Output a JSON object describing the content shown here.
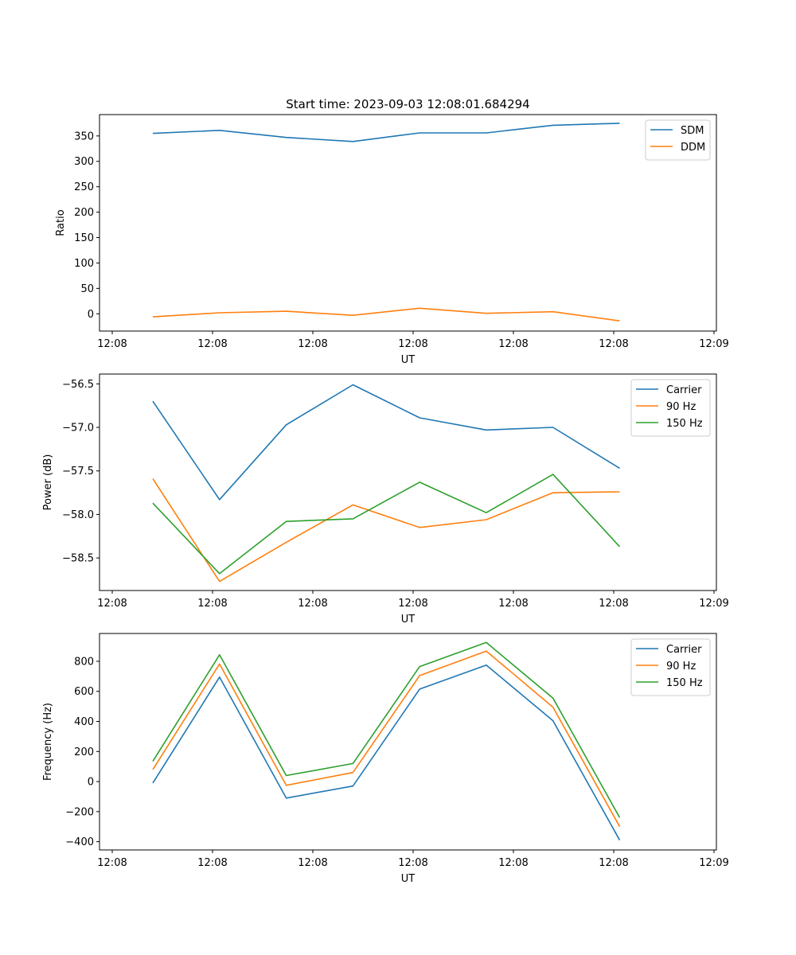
{
  "figure_title": "Start time: 2023-09-03 12:08:01.684294",
  "colors": {
    "blue": "#1f77b4",
    "orange": "#ff7f0e",
    "green": "#2ca02c"
  },
  "chart_data": [
    {
      "type": "line",
      "title": "Start time: 2023-09-03 12:08:01.684294",
      "xlabel": "UT",
      "ylabel": "Ratio",
      "x_ticks": [
        "12:08",
        "12:08",
        "12:08",
        "12:08",
        "12:08",
        "12:08",
        "12:09"
      ],
      "x": [
        1,
        2,
        3,
        4,
        5,
        6,
        7,
        8
      ],
      "xlim": [
        0.2,
        9.45
      ],
      "ylim": [
        -34,
        392
      ],
      "y_ticks": [
        0,
        50,
        100,
        150,
        200,
        250,
        300,
        350
      ],
      "y_tick_labels": [
        "0",
        "50",
        "100",
        "150",
        "200",
        "250",
        "300",
        "350"
      ],
      "legend": "top-right",
      "series": [
        {
          "name": "SDM",
          "color": "#1f77b4",
          "values": [
            355,
            361,
            347,
            339,
            356,
            356,
            371,
            375
          ]
        },
        {
          "name": "DDM",
          "color": "#ff7f0e",
          "values": [
            -6,
            2,
            5,
            -3,
            11,
            1,
            4,
            -14
          ]
        }
      ]
    },
    {
      "type": "line",
      "title": "",
      "xlabel": "UT",
      "ylabel": "Power (dB)",
      "x_ticks": [
        "12:08",
        "12:08",
        "12:08",
        "12:08",
        "12:08",
        "12:08",
        "12:09"
      ],
      "x": [
        1,
        2,
        3,
        4,
        5,
        6,
        7,
        8
      ],
      "xlim": [
        0.2,
        9.45
      ],
      "ylim": [
        -58.874,
        -56.387
      ],
      "y_ticks": [
        -58.5,
        -58.0,
        -57.5,
        -57.0,
        -56.5
      ],
      "y_tick_labels": [
        "−58.5",
        "−58.0",
        "−57.5",
        "−57.0",
        "−56.5"
      ],
      "legend": "top-right",
      "series": [
        {
          "name": "Carrier",
          "color": "#1f77b4",
          "values": [
            -56.7,
            -57.83,
            -56.97,
            -56.51,
            -56.89,
            -57.03,
            -57.0,
            -57.47
          ]
        },
        {
          "name": "90 Hz",
          "color": "#ff7f0e",
          "values": [
            -57.59,
            -58.77,
            -58.32,
            -57.89,
            -58.15,
            -58.06,
            -57.75,
            -57.74
          ]
        },
        {
          "name": "150 Hz",
          "color": "#2ca02c",
          "values": [
            -57.87,
            -58.68,
            -58.08,
            -58.05,
            -57.63,
            -57.98,
            -57.54,
            -58.37
          ]
        }
      ]
    },
    {
      "type": "line",
      "title": "",
      "xlabel": "UT",
      "ylabel": "Frequency (Hz)",
      "x_ticks": [
        "12:08",
        "12:08",
        "12:08",
        "12:08",
        "12:08",
        "12:08",
        "12:09"
      ],
      "x": [
        1,
        2,
        3,
        4,
        5,
        6,
        7,
        8
      ],
      "xlim": [
        0.2,
        9.45
      ],
      "ylim": [
        -455,
        985
      ],
      "y_ticks": [
        -400,
        -200,
        0,
        200,
        400,
        600,
        800
      ],
      "y_tick_labels": [
        "−400",
        "−200",
        "0",
        "200",
        "400",
        "600",
        "800"
      ],
      "legend": "top-right",
      "series": [
        {
          "name": "Carrier",
          "color": "#1f77b4",
          "values": [
            -10,
            695,
            -110,
            -30,
            615,
            775,
            405,
            -390
          ]
        },
        {
          "name": "90 Hz",
          "color": "#ff7f0e",
          "values": [
            80,
            782,
            -25,
            60,
            705,
            868,
            495,
            -300
          ]
        },
        {
          "name": "150 Hz",
          "color": "#2ca02c",
          "values": [
            135,
            843,
            40,
            120,
            765,
            925,
            555,
            -240
          ]
        }
      ]
    }
  ]
}
